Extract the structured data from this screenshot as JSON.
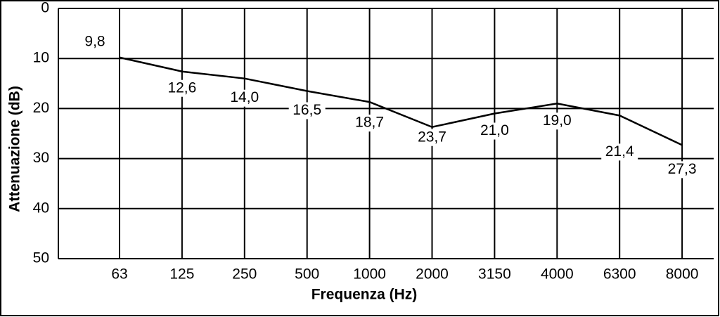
{
  "chart_data": {
    "type": "line",
    "x_label": "Frequenza (Hz)",
    "y_label": "Attenuazione (dB)",
    "categories": [
      "63",
      "125",
      "250",
      "500",
      "1000",
      "2000",
      "3150",
      "4000",
      "6300",
      "8000"
    ],
    "series": [
      {
        "color": "#000000",
        "values": [
          9.8,
          12.6,
          14.0,
          16.5,
          18.7,
          23.7,
          21.0,
          19.0,
          21.4,
          27.3
        ],
        "value_labels": [
          "9,8",
          "12,6",
          "14,0",
          "16,5",
          "18,7",
          "23,7",
          "21,0",
          "19,0",
          "21,4",
          "27,3"
        ]
      }
    ],
    "ylim": [
      0,
      50
    ],
    "yticks": [
      0,
      10,
      20,
      30,
      40,
      50
    ],
    "y_reversed": true,
    "grid": true
  }
}
